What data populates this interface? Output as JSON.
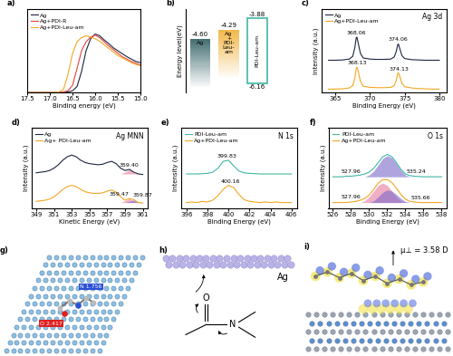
{
  "chart_data": [
    {
      "panel_label": "a)",
      "type": "line",
      "xlabel": "Binding energy (eV)",
      "x": [
        17.5,
        17.3,
        17.1,
        16.9,
        16.8,
        16.7,
        16.6,
        16.5,
        16.4,
        16.3,
        16.2,
        16.1,
        16.0,
        15.9,
        15.8,
        15.7,
        15.6,
        15.5,
        15.4,
        15.3,
        15.2,
        15.1,
        15.0
      ],
      "series": [
        {
          "name": "Ag",
          "color": "#1c2541",
          "values": [
            0,
            0,
            0,
            0,
            0,
            0,
            0.01,
            0.03,
            0.1,
            0.35,
            0.7,
            0.9,
            0.98,
            0.95,
            0.88,
            0.82,
            0.75,
            0.7,
            0.65,
            0.6,
            0.56,
            0.52,
            0.5
          ]
        },
        {
          "name": "Ag+PDI-R",
          "color": "#e8443a",
          "values": [
            0,
            0,
            0,
            0,
            0,
            0.01,
            0.03,
            0.12,
            0.4,
            0.7,
            0.85,
            0.93,
            0.96,
            0.92,
            0.85,
            0.78,
            0.72,
            0.66,
            0.6,
            0.56,
            0.52,
            0.49,
            0.46
          ]
        },
        {
          "name": "Ag+PDI-Leu-am",
          "color": "#f5a623",
          "values": [
            0,
            0,
            0,
            0,
            0.01,
            0.05,
            0.3,
            0.65,
            0.85,
            0.92,
            0.95,
            0.93,
            0.9,
            0.86,
            0.8,
            0.74,
            0.68,
            0.62,
            0.58,
            0.54,
            0.5,
            0.47,
            0.45
          ]
        }
      ],
      "xlim": [
        17.5,
        15.0
      ],
      "xticks": [
        17.5,
        17.0,
        16.5,
        16.0,
        15.5,
        15.0
      ],
      "ylim": [
        0,
        1.4
      ],
      "tick_labels": "x",
      "legend": "upper left"
    },
    {
      "panel_label": "c)",
      "type": "line",
      "title": "Ag 3d",
      "xlabel": "Binding Energy (eV)",
      "ylabel": "Intensity (a.u.)",
      "x": [
        364,
        365,
        366,
        367,
        367.5,
        367.8,
        368.0,
        368.1,
        368.3,
        368.6,
        369,
        370,
        371,
        372,
        373,
        373.5,
        373.8,
        374.0,
        374.1,
        374.3,
        374.6,
        375,
        376,
        377,
        378,
        379,
        380
      ],
      "series": [
        {
          "name": "Ag",
          "color": "#1c2541",
          "values": [
            0.56,
            0.56,
            0.565,
            0.58,
            0.63,
            0.78,
            0.95,
            0.96,
            0.85,
            0.68,
            0.6,
            0.58,
            0.575,
            0.575,
            0.58,
            0.62,
            0.72,
            0.83,
            0.84,
            0.76,
            0.64,
            0.59,
            0.57,
            0.565,
            0.56,
            0.56,
            0.56
          ]
        },
        {
          "name": "Ag+PDI-Leu-am",
          "color": "#f5a623",
          "values": [
            0.06,
            0.06,
            0.065,
            0.08,
            0.12,
            0.25,
            0.42,
            0.44,
            0.36,
            0.2,
            0.11,
            0.09,
            0.085,
            0.085,
            0.09,
            0.12,
            0.22,
            0.33,
            0.34,
            0.28,
            0.16,
            0.1,
            0.08,
            0.07,
            0.065,
            0.06,
            0.06
          ]
        }
      ],
      "annotations": [
        {
          "text": "368.06",
          "x": 368.06,
          "series": 0
        },
        {
          "text": "374.06",
          "x": 374.06,
          "series": 0
        },
        {
          "text": "368.13",
          "x": 368.13,
          "series": 1
        },
        {
          "text": "374.13",
          "x": 374.13,
          "series": 1
        }
      ],
      "xlim": [
        363,
        381
      ],
      "xticks": [
        365,
        370,
        375,
        380
      ],
      "ylim": [
        0,
        1.45
      ],
      "tick_labels": "x",
      "legend": "upper left"
    },
    {
      "panel_label": "d)",
      "type": "line",
      "title": "Ag MNN",
      "xlabel": "Kinetic Energy (eV)",
      "ylabel": "Intensity (a.u.)",
      "x": [
        349,
        349.5,
        350,
        350.5,
        351,
        351.5,
        352,
        352.5,
        353,
        353.5,
        354,
        354.5,
        355,
        355.5,
        356,
        356.5,
        357,
        357.5,
        358,
        358.5,
        359,
        359.5,
        360,
        360.5,
        361
      ],
      "series": [
        {
          "name": "Ag",
          "color": "#1c2541",
          "values": [
            0.62,
            0.63,
            0.64,
            0.66,
            0.7,
            0.76,
            0.84,
            0.9,
            0.93,
            0.9,
            0.84,
            0.8,
            0.78,
            0.77,
            0.76,
            0.77,
            0.8,
            0.82,
            0.78,
            0.7,
            0.66,
            0.68,
            0.63,
            0.6,
            0.59
          ]
        },
        {
          "type": "area",
          "color": "#e87aa0",
          "values": [
            null,
            null,
            null,
            null,
            null,
            null,
            null,
            null,
            null,
            null,
            null,
            null,
            null,
            null,
            null,
            null,
            null,
            null,
            null,
            0.6,
            0.63,
            0.68,
            0.62,
            0.6,
            null
          ]
        },
        {
          "name": "Ag+ PDI-Leu-am",
          "color": "#f5a623",
          "values": [
            0.12,
            0.13,
            0.14,
            0.16,
            0.2,
            0.26,
            0.33,
            0.38,
            0.4,
            0.38,
            0.33,
            0.29,
            0.27,
            0.26,
            0.26,
            0.27,
            0.3,
            0.32,
            0.28,
            0.2,
            0.14,
            0.17,
            0.15,
            0.1,
            0.09
          ]
        },
        {
          "type": "area",
          "color": "#e87aa0",
          "values": [
            null,
            null,
            null,
            null,
            null,
            null,
            null,
            null,
            null,
            null,
            null,
            null,
            null,
            null,
            null,
            null,
            null,
            null,
            null,
            0.1,
            0.13,
            0.17,
            0.12,
            0.1,
            null
          ]
        },
        {
          "type": "area",
          "color": "#7b68c8",
          "values": [
            null,
            null,
            null,
            null,
            null,
            null,
            null,
            null,
            null,
            null,
            null,
            null,
            null,
            null,
            null,
            null,
            null,
            null,
            null,
            null,
            0.1,
            0.12,
            0.15,
            0.11,
            0.1
          ]
        }
      ],
      "annotations": [
        {
          "text": "359.40",
          "x": 359.4,
          "series": 0
        },
        {
          "text": "359.47",
          "x": 359.47,
          "series": 2
        },
        {
          "text": "359.87",
          "x": 359.87,
          "series": 2
        }
      ],
      "xlim": [
        348.5,
        361.5
      ],
      "xticks": [
        349,
        351,
        353,
        355,
        357,
        359,
        361
      ],
      "ylim": [
        0,
        1.4
      ],
      "tick_labels": "x",
      "legend": "upper left"
    },
    {
      "panel_label": "e)",
      "type": "line",
      "title": "N 1s",
      "xlabel": "Binding Energy (eV)",
      "ylabel": "Intensity (a.u.)",
      "x": [
        396,
        396.5,
        397,
        397.5,
        398,
        398.5,
        399,
        399.5,
        400,
        400.5,
        401,
        401.5,
        402,
        402.5,
        403,
        403.5,
        404,
        404.5,
        405,
        405.5,
        406
      ],
      "series": [
        {
          "name": "PDI-Leu-am",
          "color": "#3fb8a6",
          "values": [
            0.6,
            0.6,
            0.6,
            0.605,
            0.61,
            0.63,
            0.7,
            0.82,
            0.84,
            0.74,
            0.65,
            0.62,
            0.61,
            0.605,
            0.6,
            0.6,
            0.6,
            0.6,
            0.6,
            0.6,
            0.6
          ]
        },
        {
          "name": "Ag+PDI-Leu-am",
          "color": "#f5a623",
          "values": [
            0.1,
            0.11,
            0.1,
            0.12,
            0.11,
            0.14,
            0.22,
            0.33,
            0.4,
            0.36,
            0.24,
            0.15,
            0.12,
            0.11,
            0.1,
            0.11,
            0.1,
            0.11,
            0.1,
            0.1,
            0.1
          ]
        }
      ],
      "annotations": [
        {
          "text": "399.83",
          "x": 399.83,
          "series": 0
        },
        {
          "text": "400.16",
          "x": 400.16,
          "series": 1
        }
      ],
      "xlim": [
        395.5,
        406.5
      ],
      "xticks": [
        396,
        398,
        400,
        402,
        404,
        406
      ],
      "ylim": [
        0,
        1.4
      ],
      "tick_labels": "x",
      "legend": "upper left"
    },
    {
      "panel_label": "f)",
      "type": "line",
      "title": "O 1s",
      "xlabel": "Binding Energy (eV)",
      "ylabel": "Intensity (a.u.)",
      "x": [
        526,
        526.5,
        527,
        527.5,
        528,
        528.5,
        529,
        529.5,
        530,
        530.5,
        531,
        531.5,
        532,
        532.5,
        533,
        533.5,
        534,
        534.5,
        535,
        535.5,
        536,
        536.5,
        537,
        537.5,
        538
      ],
      "series": [
        {
          "name": "PDI-Leu-am",
          "color": "#3fb8a6",
          "values": [
            0.55,
            0.55,
            0.55,
            0.56,
            0.56,
            0.57,
            0.58,
            0.6,
            0.63,
            0.7,
            0.8,
            0.9,
            0.94,
            0.9,
            0.8,
            0.68,
            0.6,
            0.57,
            0.56,
            0.555,
            0.55,
            0.55,
            0.55,
            0.55,
            0.55
          ]
        },
        {
          "type": "area",
          "color": "#7b68c8",
          "values": [
            null,
            null,
            null,
            null,
            null,
            null,
            null,
            0.55,
            0.58,
            0.65,
            0.76,
            0.87,
            0.92,
            0.88,
            0.78,
            0.66,
            0.58,
            0.55,
            null,
            null,
            null,
            null,
            null,
            null,
            null
          ]
        },
        {
          "name": "Ag+PDI-Leu-am",
          "color": "#f5a623",
          "values": [
            0.1,
            0.1,
            0.1,
            0.1,
            0.11,
            0.12,
            0.14,
            0.17,
            0.23,
            0.33,
            0.44,
            0.5,
            0.5,
            0.45,
            0.35,
            0.24,
            0.16,
            0.12,
            0.11,
            0.1,
            0.1,
            0.1,
            0.1,
            0.1,
            0.1
          ]
        },
        {
          "type": "area",
          "color": "#e87aa0",
          "values": [
            null,
            null,
            null,
            null,
            null,
            null,
            0.1,
            0.13,
            0.2,
            0.3,
            0.4,
            0.44,
            0.4,
            0.3,
            0.2,
            0.13,
            0.1,
            null,
            null,
            null,
            null,
            null,
            null,
            null,
            null
          ]
        },
        {
          "type": "area",
          "color": "#7b68c8",
          "values": [
            null,
            null,
            null,
            null,
            null,
            null,
            null,
            null,
            0.1,
            0.13,
            0.2,
            0.28,
            0.32,
            0.3,
            0.24,
            0.17,
            0.12,
            0.1,
            null,
            null,
            null,
            null,
            null,
            null,
            null
          ]
        }
      ],
      "annotations": [
        {
          "text": "527.96",
          "x": 527.96,
          "series": 0
        },
        {
          "text": "535.24",
          "x": 535.24,
          "series": 0
        },
        {
          "text": "527.96",
          "x": 527.96,
          "series": 2
        },
        {
          "text": "535.66",
          "x": 535.66,
          "series": 2
        }
      ],
      "xlim": [
        525.5,
        538.5
      ],
      "xticks": [
        526,
        528,
        530,
        532,
        534,
        536,
        538
      ],
      "ylim": [
        0,
        1.4
      ],
      "tick_labels": "x",
      "legend": "upper left"
    }
  ],
  "energy_diagram": {
    "panel_label": "b)",
    "ylabel": "Energy level(eV)",
    "ylim": [
      -6.5,
      -3.55
    ],
    "tick_labels": false,
    "levels": [
      {
        "name": "Ag",
        "top": {
          "value": -4.6,
          "label": "-4.60"
        },
        "color": "#2f5f62"
      },
      {
        "name": "Ag\n+\nPDI-\nLeu-\nam",
        "top": {
          "value": -4.29,
          "label": "-4.29"
        },
        "color": "#f2b23a"
      },
      {
        "name": "PDI-Leu-am",
        "top": {
          "value": -3.88,
          "label": "-3.88"
        },
        "bottom": {
          "value": -6.16,
          "label": "-6.16"
        },
        "color": "#3fb8a6"
      }
    ]
  },
  "structures": [
    {
      "panel_label": "g)",
      "labels": [
        {
          "text": "N 1.756",
          "color": "#2b50d6"
        },
        {
          "text": "O 2.417",
          "color": "#e02020"
        }
      ]
    },
    {
      "panel_label": "h)",
      "atoms": [
        {
          "text": "O"
        },
        {
          "text": "N"
        }
      ],
      "surface": "Ag"
    },
    {
      "panel_label": "i)",
      "dipole": "μ⊥ = 3.58 D"
    }
  ]
}
